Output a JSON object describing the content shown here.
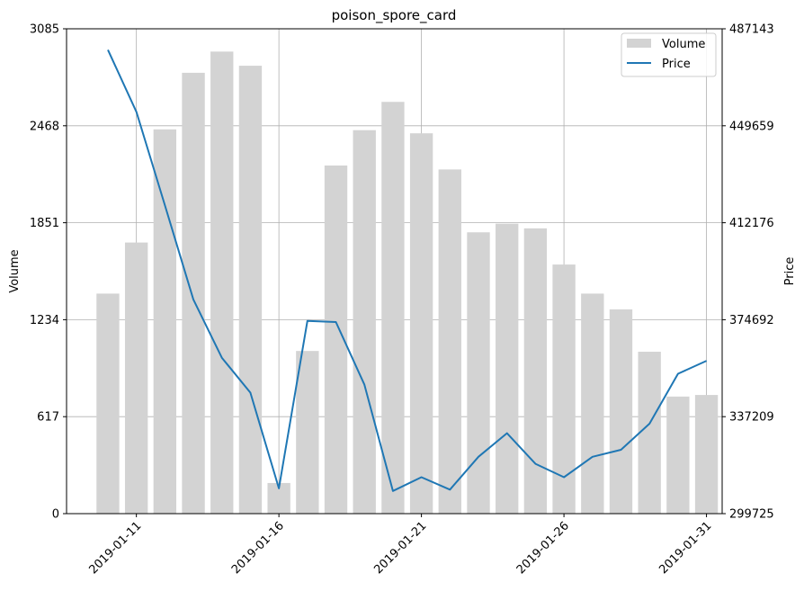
{
  "chart_data": {
    "type": "bar+line",
    "title": "poison_spore_card",
    "ylabel": "Volume",
    "ylabel_right": "Price",
    "legend": {
      "placement": "top-right",
      "entries": [
        "Volume",
        "Price"
      ]
    },
    "grid": true,
    "x": [
      "2019-01-10",
      "2019-01-11",
      "2019-01-12",
      "2019-01-13",
      "2019-01-14",
      "2019-01-15",
      "2019-01-16",
      "2019-01-17",
      "2019-01-18",
      "2019-01-19",
      "2019-01-20",
      "2019-01-21",
      "2019-01-22",
      "2019-01-23",
      "2019-01-24",
      "2019-01-25",
      "2019-01-26",
      "2019-01-27",
      "2019-01-28",
      "2019-01-29",
      "2019-01-30",
      "2019-01-31"
    ],
    "x_ticks": [
      "2019-01-11",
      "2019-01-16",
      "2019-01-21",
      "2019-01-26",
      "2019-01-31"
    ],
    "ylim": [
      0,
      3085
    ],
    "y_ticks": [
      "0",
      "617",
      "1234",
      "1851",
      "2468",
      "3085"
    ],
    "y2lim": [
      299725,
      487143
    ],
    "y2_ticks": [
      "299725",
      "337209",
      "374692",
      "412176",
      "449659",
      "487143"
    ],
    "series": [
      {
        "name": "Volume",
        "kind": "bar",
        "color": "#d3d3d3",
        "values": [
          1400,
          1725,
          2445,
          2805,
          2940,
          2850,
          195,
          1035,
          2215,
          2440,
          2620,
          2420,
          2190,
          1790,
          1845,
          1815,
          1585,
          1400,
          1300,
          1030,
          745,
          755
        ]
      },
      {
        "name": "Price",
        "kind": "line",
        "color": "#1f77b4",
        "values": [
          479000,
          455000,
          419000,
          382500,
          360000,
          346500,
          309500,
          374200,
          373800,
          349600,
          308500,
          313800,
          309000,
          321700,
          330800,
          319000,
          313800,
          321700,
          324400,
          334500,
          353800,
          358800
        ]
      }
    ]
  }
}
